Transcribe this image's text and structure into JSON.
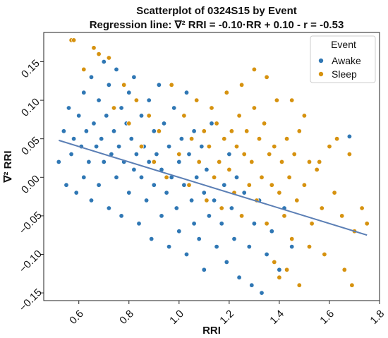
{
  "chart_data": {
    "type": "scatter",
    "title": "Scatterplot of 0324S15 by Event",
    "subtitle": "Regression line: ∇² RRI = -0.10·RR + 0.10 - r = -0.53",
    "xlabel": "RRI",
    "ylabel": "∇² RRI",
    "xlim": [
      0.46,
      1.8
    ],
    "ylim": [
      -0.16,
      0.188
    ],
    "x_ticks": [
      0.6,
      0.8,
      1.0,
      1.2,
      1.4,
      1.6,
      1.8
    ],
    "x_tick_labels": [
      "0.6",
      "0.8",
      "1.0",
      "1.2",
      "1.4",
      "1.6",
      "1.8"
    ],
    "y_ticks": [
      -0.15,
      -0.1,
      -0.05,
      0.0,
      0.05,
      0.1,
      0.15
    ],
    "y_tick_labels": [
      "−0.15",
      "−0.10",
      "−0.05",
      "0.00",
      "0.05",
      "0.10",
      "0.15"
    ],
    "grid": false,
    "legend": {
      "title": "Event",
      "placement": "top-right",
      "entries": [
        {
          "name": "Awake",
          "color": "#2f77b4"
        },
        {
          "name": "Sleep",
          "color": "#d6920f"
        }
      ]
    },
    "regression": {
      "slope": -0.1,
      "intercept": 0.1,
      "x_range": [
        0.52,
        1.75
      ],
      "color": "#5b7fb5"
    },
    "series": [
      {
        "name": "Awake",
        "color": "#2f77b4",
        "points": [
          [
            0.52,
            0.02
          ],
          [
            0.54,
            0.06
          ],
          [
            0.55,
            -0.01
          ],
          [
            0.56,
            0.09
          ],
          [
            0.57,
            0.03
          ],
          [
            0.58,
            0.05
          ],
          [
            0.59,
            -0.02
          ],
          [
            0.6,
            0.08
          ],
          [
            0.61,
            0.04
          ],
          [
            0.62,
            0.11
          ],
          [
            0.62,
            0.0
          ],
          [
            0.63,
            0.06
          ],
          [
            0.64,
            0.02
          ],
          [
            0.65,
            0.13
          ],
          [
            0.65,
            -0.03
          ],
          [
            0.66,
            0.07
          ],
          [
            0.67,
            0.04
          ],
          [
            0.68,
            0.1
          ],
          [
            0.68,
            -0.01
          ],
          [
            0.69,
            0.05
          ],
          [
            0.7,
            0.15
          ],
          [
            0.7,
            0.02
          ],
          [
            0.71,
            0.08
          ],
          [
            0.72,
            -0.04
          ],
          [
            0.72,
            0.12
          ],
          [
            0.73,
            0.03
          ],
          [
            0.74,
            0.06
          ],
          [
            0.75,
            0.0
          ],
          [
            0.75,
            0.14
          ],
          [
            0.76,
            0.04
          ],
          [
            0.77,
            0.09
          ],
          [
            0.77,
            -0.05
          ],
          [
            0.78,
            0.02
          ],
          [
            0.79,
            0.07
          ],
          [
            0.8,
            0.11
          ],
          [
            0.8,
            -0.02
          ],
          [
            0.81,
            0.05
          ],
          [
            0.82,
            0.01
          ],
          [
            0.82,
            0.13
          ],
          [
            0.83,
            0.03
          ],
          [
            0.84,
            -0.06
          ],
          [
            0.85,
            0.08
          ],
          [
            0.85,
            0.0
          ],
          [
            0.86,
            0.04
          ],
          [
            0.87,
            -0.03
          ],
          [
            0.88,
            0.1
          ],
          [
            0.88,
            0.02
          ],
          [
            0.89,
            -0.08
          ],
          [
            0.9,
            0.06
          ],
          [
            0.9,
            -0.01
          ],
          [
            0.91,
            0.03
          ],
          [
            0.92,
            0.12
          ],
          [
            0.93,
            -0.05
          ],
          [
            0.93,
            0.01
          ],
          [
            0.94,
            0.07
          ],
          [
            0.95,
            -0.02
          ],
          [
            0.96,
            0.04
          ],
          [
            0.96,
            -0.09
          ],
          [
            0.97,
            0.0
          ],
          [
            0.98,
            0.09
          ],
          [
            0.99,
            -0.04
          ],
          [
            1.0,
            0.02
          ],
          [
            1.0,
            -0.07
          ],
          [
            1.01,
            0.05
          ],
          [
            1.02,
            -0.01
          ],
          [
            1.03,
            0.11
          ],
          [
            1.03,
            -0.1
          ],
          [
            1.04,
            0.03
          ],
          [
            1.05,
            -0.03
          ],
          [
            1.06,
            0.06
          ],
          [
            1.06,
            -0.06
          ],
          [
            1.07,
            0.0
          ],
          [
            1.08,
            -0.08
          ],
          [
            1.09,
            0.04
          ],
          [
            1.1,
            -0.02
          ],
          [
            1.1,
            -0.12
          ],
          [
            1.11,
            0.01
          ],
          [
            1.12,
            -0.05
          ],
          [
            1.13,
            0.07
          ],
          [
            1.14,
            -0.03
          ],
          [
            1.15,
            -0.09
          ],
          [
            1.16,
            0.02
          ],
          [
            1.17,
            -0.06
          ],
          [
            1.18,
            -0.01
          ],
          [
            1.19,
            -0.11
          ],
          [
            1.2,
            0.03
          ],
          [
            1.21,
            -0.04
          ],
          [
            1.22,
            -0.08
          ],
          [
            1.23,
            0.0
          ],
          [
            1.24,
            -0.13
          ],
          [
            1.25,
            -0.05
          ],
          [
            1.26,
            -0.02
          ],
          [
            1.28,
            -0.09
          ],
          [
            1.29,
            -0.14
          ],
          [
            1.3,
            -0.06
          ],
          [
            1.32,
            -0.03
          ],
          [
            1.33,
            -0.15
          ],
          [
            1.35,
            -0.1
          ],
          [
            1.37,
            -0.07
          ],
          [
            1.4,
            -0.12
          ],
          [
            1.42,
            -0.04
          ],
          [
            1.45,
            -0.09
          ],
          [
            1.68,
            0.053
          ]
        ]
      },
      {
        "name": "Sleep",
        "color": "#d6920f",
        "points": [
          [
            0.57,
            0.178
          ],
          [
            0.58,
            0.178
          ],
          [
            0.62,
            0.14
          ],
          [
            0.66,
            0.168
          ],
          [
            0.68,
            0.16
          ],
          [
            0.72,
            0.155
          ],
          [
            0.74,
            0.09
          ],
          [
            0.78,
            0.12
          ],
          [
            0.8,
            0.07
          ],
          [
            0.83,
            0.1
          ],
          [
            0.85,
            0.04
          ],
          [
            0.88,
            0.08
          ],
          [
            0.9,
            0.02
          ],
          [
            0.92,
            0.06
          ],
          [
            0.95,
            0.0
          ],
          [
            0.97,
            0.12
          ],
          [
            1.0,
            0.03
          ],
          [
            1.02,
            0.08
          ],
          [
            1.04,
            -0.01
          ],
          [
            1.05,
            0.05
          ],
          [
            1.07,
            0.1
          ],
          [
            1.08,
            0.02
          ],
          [
            1.1,
            0.06
          ],
          [
            1.11,
            -0.03
          ],
          [
            1.12,
            0.04
          ],
          [
            1.13,
            0.09
          ],
          [
            1.14,
            0.0
          ],
          [
            1.15,
            0.07
          ],
          [
            1.16,
            0.02
          ],
          [
            1.17,
            -0.04
          ],
          [
            1.18,
            0.05
          ],
          [
            1.19,
            0.11
          ],
          [
            1.2,
            0.01
          ],
          [
            1.21,
            0.06
          ],
          [
            1.22,
            -0.02
          ],
          [
            1.23,
            0.04
          ],
          [
            1.24,
            0.08
          ],
          [
            1.25,
            -0.05
          ],
          [
            1.26,
            0.03
          ],
          [
            1.27,
            0.06
          ],
          [
            1.28,
            -0.01
          ],
          [
            1.29,
            0.02
          ],
          [
            1.3,
            0.09
          ],
          [
            1.31,
            -0.03
          ],
          [
            1.32,
            0.05
          ],
          [
            1.33,
            0.0
          ],
          [
            1.34,
            0.07
          ],
          [
            1.35,
            -0.06
          ],
          [
            1.36,
            0.03
          ],
          [
            1.37,
            -0.01
          ],
          [
            1.38,
            0.04
          ],
          [
            1.39,
            0.1
          ],
          [
            1.4,
            -0.02
          ],
          [
            1.41,
            0.02
          ],
          [
            1.42,
            -0.05
          ],
          [
            1.43,
            0.05
          ],
          [
            1.44,
            0.0
          ],
          [
            1.45,
            -0.08
          ],
          [
            1.46,
            0.03
          ],
          [
            1.47,
            -0.03
          ],
          [
            1.48,
            0.06
          ],
          [
            1.5,
            -0.01
          ],
          [
            1.52,
            0.02
          ],
          [
            1.53,
            -0.06
          ],
          [
            1.55,
            0.01
          ],
          [
            1.57,
            -0.04
          ],
          [
            1.6,
            0.04
          ],
          [
            1.62,
            -0.02
          ],
          [
            1.65,
            -0.05
          ],
          [
            1.7,
            -0.07
          ],
          [
            1.73,
            -0.04
          ],
          [
            1.75,
            -0.06
          ],
          [
            1.4,
            -0.13
          ],
          [
            1.43,
            -0.12
          ],
          [
            1.48,
            -0.14
          ],
          [
            1.52,
            -0.09
          ],
          [
            1.66,
            -0.12
          ],
          [
            1.69,
            -0.14
          ],
          [
            1.25,
            0.12
          ],
          [
            1.35,
            0.13
          ],
          [
            1.3,
            0.14
          ],
          [
            1.45,
            0.1
          ],
          [
            1.38,
            -0.11
          ],
          [
            1.58,
            -0.1
          ],
          [
            1.63,
            0.05
          ],
          [
            1.68,
            0.03
          ],
          [
            1.56,
            0.02
          ],
          [
            1.5,
            0.08
          ]
        ]
      }
    ]
  }
}
